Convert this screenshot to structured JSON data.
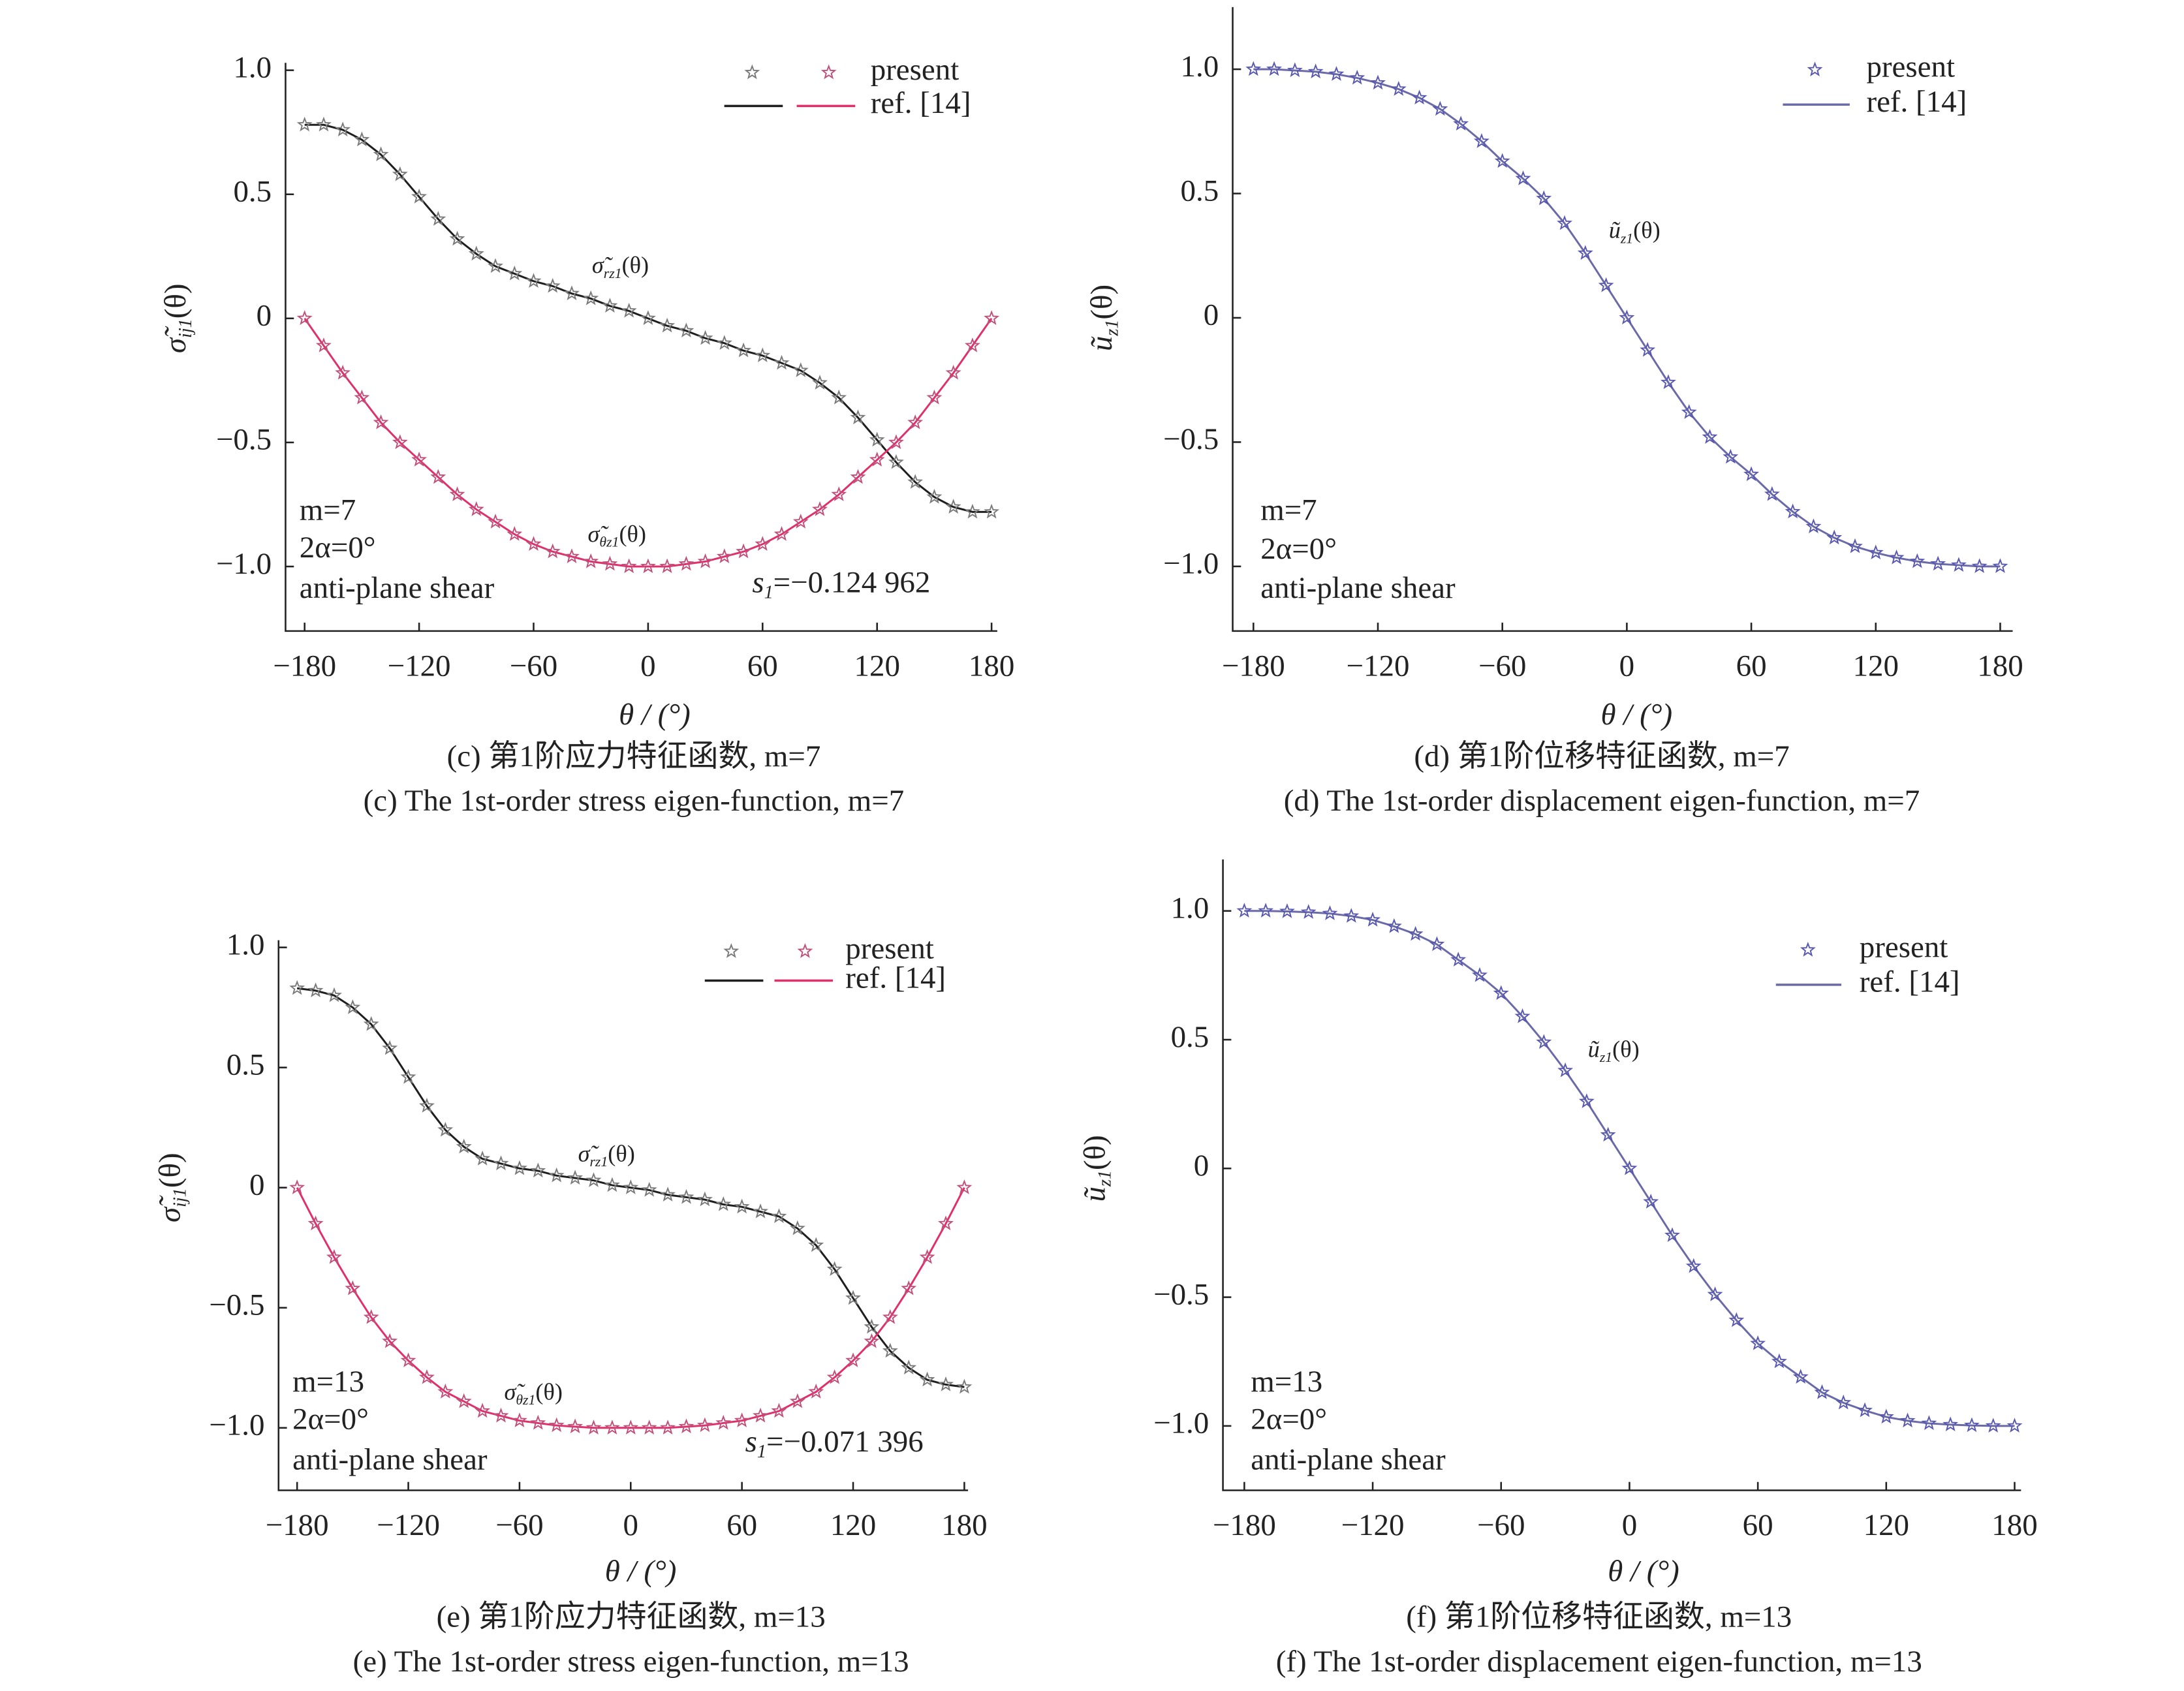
{
  "chart_data": [
    {
      "type": "line",
      "caption_cn": "(c) 第1阶应力特征函数, m=7",
      "caption_en": "(c) The 1st-order stress eigen-function, m=7",
      "xlabel": "θ / (°)",
      "ylabel": {
        "base": "σ̃",
        "sub": "ij1",
        "arg": "(θ)"
      },
      "legend": [
        "present",
        "ref. [14]"
      ],
      "notes": [
        "m=7",
        "2α=0°",
        "anti-plane shear"
      ],
      "s1": {
        "base": "s",
        "sub": "1",
        "arg": "=−0.124 962"
      },
      "xlim": [
        -190,
        183
      ],
      "ylim": [
        -1.26,
        1.03
      ],
      "xticks": [
        {
          "value": -180,
          "label": "−180"
        },
        {
          "value": -120,
          "label": "−120"
        },
        {
          "value": -60,
          "label": "−60"
        },
        0,
        60,
        120,
        180
      ],
      "yticks": [
        {
          "value": -1,
          "label": "−1.0"
        },
        {
          "value": -0.5,
          "label": "−0.5"
        },
        0,
        0.5,
        {
          "value": 1,
          "label": "1.0"
        }
      ],
      "x": [
        -180,
        -170,
        -160,
        -150,
        -140,
        -130,
        -120,
        -110,
        -100,
        -90,
        -80,
        -70,
        -60,
        -50,
        -40,
        -30,
        -20,
        -10,
        0,
        10,
        20,
        30,
        40,
        50,
        60,
        70,
        80,
        90,
        100,
        110,
        120,
        130,
        140,
        150,
        160,
        170,
        180
      ],
      "series": [
        {
          "label": {
            "base": "σ̃",
            "sub": "rz1",
            "arg": "(θ)"
          },
          "color": "#1e1e1e",
          "marker_color": "#7a7a7a",
          "values": [
            0.78,
            0.78,
            0.76,
            0.72,
            0.66,
            0.58,
            0.49,
            0.4,
            0.32,
            0.26,
            0.21,
            0.18,
            0.15,
            0.13,
            0.1,
            0.08,
            0.05,
            0.03,
            0,
            -0.03,
            -0.05,
            -0.08,
            -0.1,
            -0.13,
            -0.15,
            -0.18,
            -0.21,
            -0.26,
            -0.32,
            -0.4,
            -0.49,
            -0.58,
            -0.66,
            -0.72,
            -0.76,
            -0.78,
            -0.78
          ]
        },
        {
          "label": {
            "base": "σ̃",
            "sub": "θz1",
            "arg": "(θ)"
          },
          "color": "#e0306a",
          "marker_color": "#c0507a",
          "values": [
            0,
            -0.11,
            -0.22,
            -0.32,
            -0.42,
            -0.5,
            -0.57,
            -0.64,
            -0.71,
            -0.77,
            -0.82,
            -0.87,
            -0.91,
            -0.94,
            -0.96,
            -0.98,
            -0.99,
            -1,
            -1,
            -1,
            -0.99,
            -0.98,
            -0.96,
            -0.94,
            -0.91,
            -0.87,
            -0.82,
            -0.77,
            -0.71,
            -0.64,
            -0.57,
            -0.5,
            -0.42,
            -0.32,
            -0.22,
            -0.11,
            0
          ]
        }
      ]
    },
    {
      "type": "line",
      "caption_cn": "(d) 第1阶位移特征函数, m=7",
      "caption_en": "(d) The 1st-order displacement eigen-function, m=7",
      "xlabel": "θ / (°)",
      "ylabel": {
        "base": "ũ",
        "sub": "z1",
        "arg": "(θ)"
      },
      "legend": [
        "present",
        "ref. [14]"
      ],
      "notes": [
        "m=7",
        "2α=0°",
        "anti-plane shear"
      ],
      "xlim": [
        -190,
        186
      ],
      "ylim": [
        -1.26,
        1.25
      ],
      "xticks": [
        {
          "value": -180,
          "label": "−180"
        },
        {
          "value": -120,
          "label": "−120"
        },
        {
          "value": -60,
          "label": "−60"
        },
        0,
        60,
        120,
        180
      ],
      "yticks": [
        {
          "value": -1,
          "label": "−1.0"
        },
        {
          "value": -0.5,
          "label": "−0.5"
        },
        0,
        0.5,
        {
          "value": 1,
          "label": "1.0"
        }
      ],
      "x": [
        -180,
        -170,
        -160,
        -150,
        -140,
        -130,
        -120,
        -110,
        -100,
        -90,
        -80,
        -70,
        -60,
        -50,
        -40,
        -30,
        -20,
        -10,
        0,
        10,
        20,
        30,
        40,
        50,
        60,
        70,
        80,
        90,
        100,
        110,
        120,
        130,
        140,
        150,
        160,
        170,
        180
      ],
      "series": [
        {
          "label": {
            "base": "ũ",
            "sub": "z1",
            "arg": "(θ)"
          },
          "color": "#6a6aa8",
          "marker_color": "#5858b0",
          "values": [
            1,
            1,
            0.995,
            0.99,
            0.98,
            0.965,
            0.945,
            0.92,
            0.885,
            0.84,
            0.78,
            0.71,
            0.63,
            0.56,
            0.48,
            0.38,
            0.26,
            0.13,
            0,
            -0.13,
            -0.26,
            -0.38,
            -0.48,
            -0.56,
            -0.63,
            -0.71,
            -0.78,
            -0.84,
            -0.885,
            -0.92,
            -0.945,
            -0.965,
            -0.98,
            -0.99,
            -0.995,
            -1,
            -1
          ]
        }
      ]
    },
    {
      "type": "line",
      "caption_cn": "(e) 第1阶应力特征函数, m=13",
      "caption_en": "(e) The 1st-order stress eigen-function, m=13",
      "xlabel": "θ / (°)",
      "ylabel": {
        "base": "σ̃",
        "sub": "ij1",
        "arg": "(θ)"
      },
      "legend": [
        "present",
        "ref. [14]"
      ],
      "notes": [
        "m=13",
        "2α=0°",
        "anti-plane shear"
      ],
      "s1": {
        "base": "s",
        "sub": "1",
        "arg": "=−0.071 396"
      },
      "xlim": [
        -190,
        182
      ],
      "ylim": [
        -1.26,
        1.03
      ],
      "xticks": [
        {
          "value": -180,
          "label": "−180"
        },
        {
          "value": -120,
          "label": "−120"
        },
        {
          "value": -60,
          "label": "−60"
        },
        0,
        60,
        120,
        180
      ],
      "yticks": [
        {
          "value": -1,
          "label": "−1.0"
        },
        {
          "value": -0.5,
          "label": "−0.5"
        },
        0,
        0.5,
        {
          "value": 1,
          "label": "1.0"
        }
      ],
      "x": [
        -180,
        -170,
        -160,
        -150,
        -140,
        -130,
        -120,
        -110,
        -100,
        -90,
        -80,
        -70,
        -60,
        -50,
        -40,
        -30,
        -20,
        -10,
        0,
        10,
        20,
        30,
        40,
        50,
        60,
        70,
        80,
        90,
        100,
        110,
        120,
        130,
        140,
        150,
        160,
        170,
        180
      ],
      "series": [
        {
          "label": {
            "base": "σ̃",
            "sub": "rz1",
            "arg": "(θ)"
          },
          "color": "#1e1e1e",
          "marker_color": "#7a7a7a",
          "values": [
            0.83,
            0.82,
            0.8,
            0.75,
            0.68,
            0.58,
            0.46,
            0.34,
            0.24,
            0.17,
            0.12,
            0.1,
            0.08,
            0.07,
            0.05,
            0.04,
            0.03,
            0.01,
            0,
            -0.01,
            -0.03,
            -0.04,
            -0.05,
            -0.07,
            -0.08,
            -0.1,
            -0.12,
            -0.17,
            -0.24,
            -0.34,
            -0.46,
            -0.58,
            -0.68,
            -0.75,
            -0.8,
            -0.82,
            -0.83
          ]
        },
        {
          "label": {
            "base": "σ̃",
            "sub": "θz1",
            "arg": "(θ)"
          },
          "color": "#e0306a",
          "marker_color": "#c0507a",
          "values": [
            0,
            -0.15,
            -0.29,
            -0.42,
            -0.54,
            -0.64,
            -0.72,
            -0.79,
            -0.85,
            -0.89,
            -0.93,
            -0.95,
            -0.97,
            -0.98,
            -0.99,
            -0.995,
            -1,
            -1,
            -1,
            -1,
            -1,
            -0.995,
            -0.99,
            -0.98,
            -0.97,
            -0.95,
            -0.93,
            -0.89,
            -0.85,
            -0.79,
            -0.72,
            -0.64,
            -0.54,
            -0.42,
            -0.29,
            -0.15,
            0
          ]
        }
      ]
    },
    {
      "type": "line",
      "caption_cn": "(f) 第1阶位移特征函数, m=13",
      "caption_en": "(f) The 1st-order displacement eigen-function, m=13",
      "xlabel": "θ / (°)",
      "ylabel": {
        "base": "ũ",
        "sub": "z1",
        "arg": "(θ)"
      },
      "legend": [
        "present",
        "ref. [14]"
      ],
      "notes": [
        "m=13",
        "2α=0°",
        "anti-plane shear"
      ],
      "xlim": [
        -190,
        183
      ],
      "ylim": [
        -1.25,
        1.2
      ],
      "xticks": [
        {
          "value": -180,
          "label": "−180"
        },
        {
          "value": -120,
          "label": "−120"
        },
        {
          "value": -60,
          "label": "−60"
        },
        0,
        60,
        120,
        180
      ],
      "yticks": [
        {
          "value": -1,
          "label": "−1.0"
        },
        {
          "value": -0.5,
          "label": "−0.5"
        },
        0,
        0.5,
        {
          "value": 1,
          "label": "1.0"
        }
      ],
      "x": [
        -180,
        -170,
        -160,
        -150,
        -140,
        -130,
        -120,
        -110,
        -100,
        -90,
        -80,
        -70,
        -60,
        -50,
        -40,
        -30,
        -20,
        -10,
        0,
        10,
        20,
        30,
        40,
        50,
        60,
        70,
        80,
        90,
        100,
        110,
        120,
        130,
        140,
        150,
        160,
        170,
        180
      ],
      "series": [
        {
          "label": {
            "base": "ũ",
            "sub": "z1",
            "arg": "(θ)"
          },
          "color": "#6a6aa8",
          "marker_color": "#5858b0",
          "values": [
            1,
            1,
            0.998,
            0.995,
            0.99,
            0.98,
            0.965,
            0.94,
            0.91,
            0.87,
            0.81,
            0.75,
            0.68,
            0.59,
            0.49,
            0.38,
            0.26,
            0.13,
            0,
            -0.13,
            -0.26,
            -0.38,
            -0.49,
            -0.59,
            -0.68,
            -0.75,
            -0.81,
            -0.87,
            -0.91,
            -0.94,
            -0.965,
            -0.98,
            -0.99,
            -0.995,
            -0.998,
            -1,
            -1
          ]
        }
      ]
    }
  ]
}
